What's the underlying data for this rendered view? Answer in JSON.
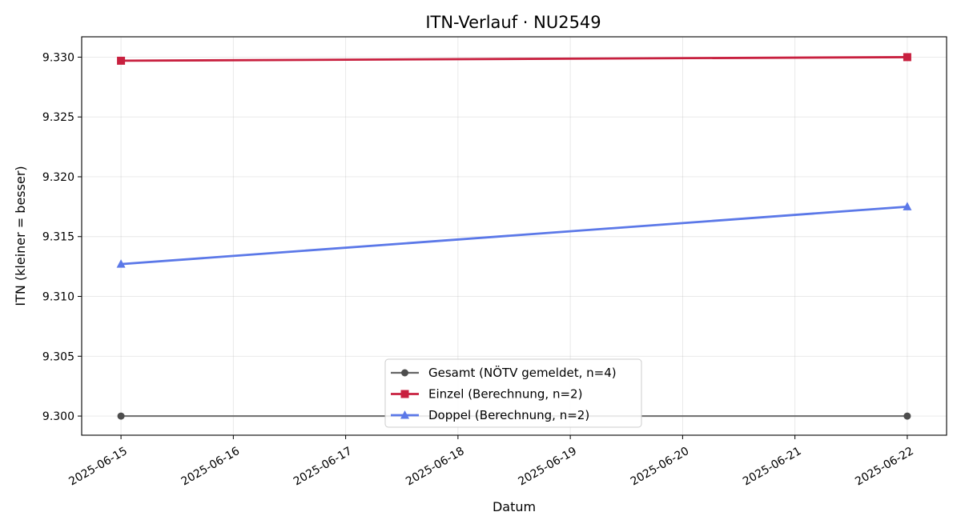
{
  "chart_data": {
    "type": "line",
    "title": "ITN-Verlauf · NU2549",
    "xlabel": "Datum",
    "ylabel": "ITN  (kleiner = besser)",
    "x": [
      "2025-06-15",
      "2025-06-16",
      "2025-06-17",
      "2025-06-18",
      "2025-06-19",
      "2025-06-20",
      "2025-06-21",
      "2025-06-22"
    ],
    "x_ticks": [
      "2025-06-15",
      "2025-06-16",
      "2025-06-17",
      "2025-06-18",
      "2025-06-19",
      "2025-06-20",
      "2025-06-21",
      "2025-06-22"
    ],
    "y_ticks": [
      "9.300",
      "9.305",
      "9.310",
      "9.315",
      "9.320",
      "9.325",
      "9.330"
    ],
    "xlim": [
      "2025-06-14",
      "2025-06-22"
    ],
    "ylim": [
      9.2984,
      9.3317
    ],
    "grid": true,
    "legend_position": "bottom-center",
    "series": [
      {
        "name": "Gesamt (NÖTV gemeldet, n=4)",
        "color": "#666666",
        "marker": "circle",
        "points": [
          {
            "x": "2025-06-15",
            "y": 9.3
          },
          {
            "x": "2025-06-22",
            "y": 9.3
          }
        ]
      },
      {
        "name": "Einzel (Berechnung, n=2)",
        "color": "#c8203f",
        "marker": "square",
        "points": [
          {
            "x": "2025-06-15",
            "y": 9.3297
          },
          {
            "x": "2025-06-22",
            "y": 9.33
          }
        ]
      },
      {
        "name": "Doppel (Berechnung, n=2)",
        "color": "#5b78e8",
        "marker": "triangle",
        "points": [
          {
            "x": "2025-06-15",
            "y": 9.3127
          },
          {
            "x": "2025-06-22",
            "y": 9.3175
          }
        ]
      }
    ]
  }
}
